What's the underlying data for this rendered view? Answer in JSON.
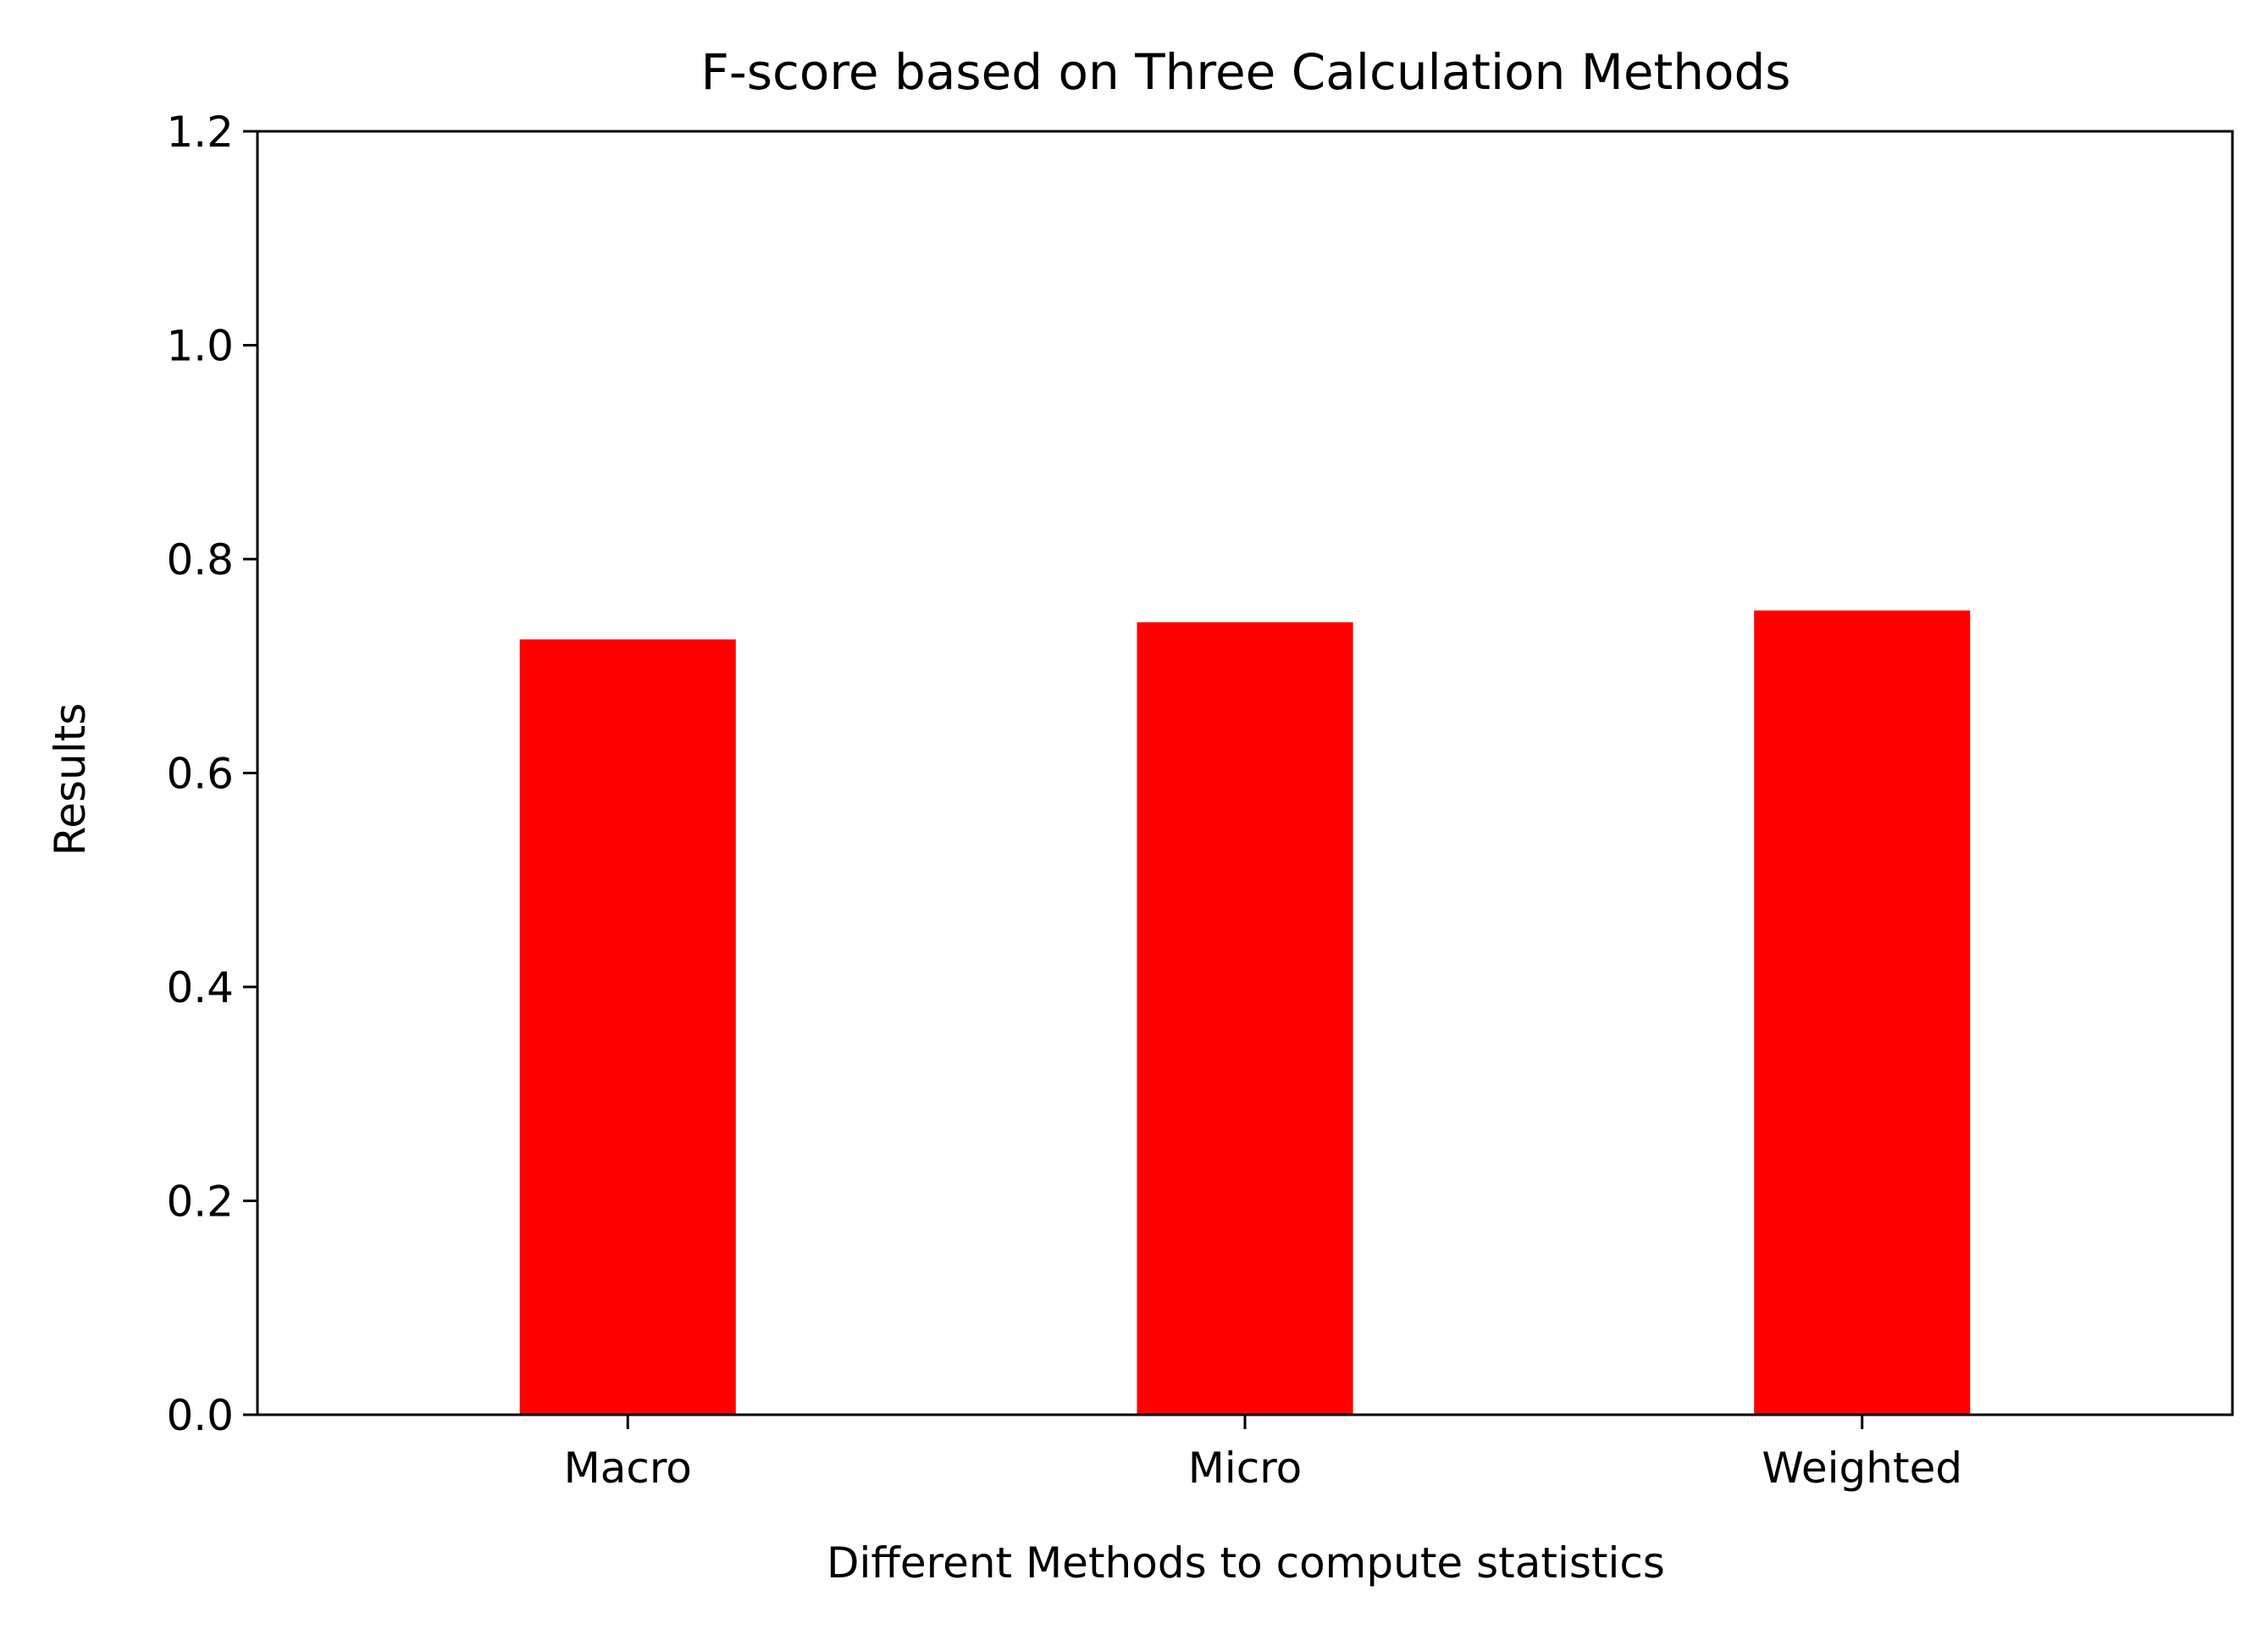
{
  "chart_data": {
    "type": "bar",
    "title": "F-score based on Three Calculation Methods",
    "xlabel": "Different Methods to compute statistics",
    "ylabel": "Results",
    "categories": [
      "Macro",
      "Micro",
      "Weighted"
    ],
    "values": [
      0.725,
      0.741,
      0.752
    ],
    "ylim": [
      0,
      1.2
    ],
    "yticks": [
      0.0,
      0.2,
      0.4,
      0.6,
      0.8,
      1.0,
      1.2
    ],
    "ytick_labels": [
      "0.0",
      "0.2",
      "0.4",
      "0.6",
      "0.8",
      "1.0",
      "1.2"
    ],
    "bar_color": "#ff0000",
    "grid": false,
    "legend": "none"
  }
}
